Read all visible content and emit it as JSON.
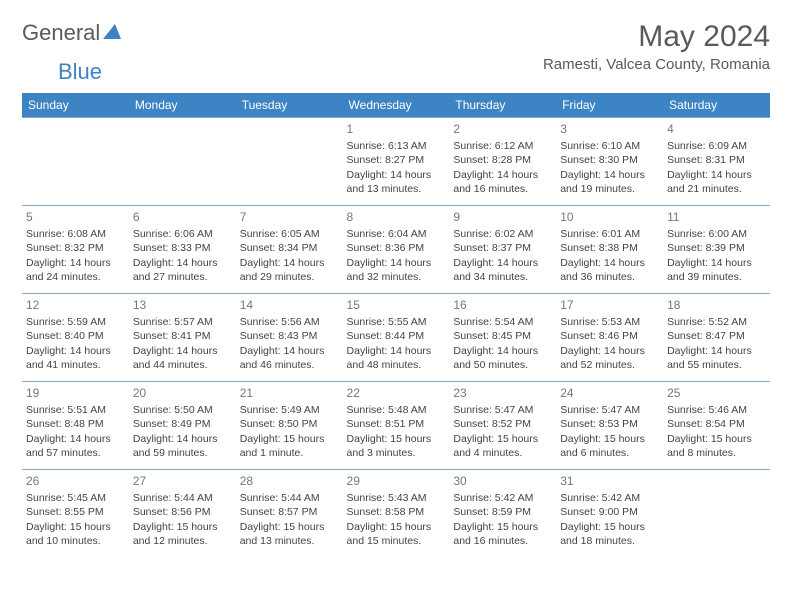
{
  "logo": {
    "text1": "General",
    "text2": "Blue"
  },
  "title": "May 2024",
  "location": "Ramesti, Valcea County, Romania",
  "colors": {
    "header_bg": "#3d84c5",
    "header_text": "#ffffff",
    "border": "#8aa8c0",
    "text": "#444444",
    "title_text": "#5a5a5a"
  },
  "weekdays": [
    "Sunday",
    "Monday",
    "Tuesday",
    "Wednesday",
    "Thursday",
    "Friday",
    "Saturday"
  ],
  "weeks": [
    [
      null,
      null,
      null,
      {
        "n": "1",
        "sr": "6:13 AM",
        "ss": "8:27 PM",
        "d1": "Daylight: 14 hours",
        "d2": "and 13 minutes."
      },
      {
        "n": "2",
        "sr": "6:12 AM",
        "ss": "8:28 PM",
        "d1": "Daylight: 14 hours",
        "d2": "and 16 minutes."
      },
      {
        "n": "3",
        "sr": "6:10 AM",
        "ss": "8:30 PM",
        "d1": "Daylight: 14 hours",
        "d2": "and 19 minutes."
      },
      {
        "n": "4",
        "sr": "6:09 AM",
        "ss": "8:31 PM",
        "d1": "Daylight: 14 hours",
        "d2": "and 21 minutes."
      }
    ],
    [
      {
        "n": "5",
        "sr": "6:08 AM",
        "ss": "8:32 PM",
        "d1": "Daylight: 14 hours",
        "d2": "and 24 minutes."
      },
      {
        "n": "6",
        "sr": "6:06 AM",
        "ss": "8:33 PM",
        "d1": "Daylight: 14 hours",
        "d2": "and 27 minutes."
      },
      {
        "n": "7",
        "sr": "6:05 AM",
        "ss": "8:34 PM",
        "d1": "Daylight: 14 hours",
        "d2": "and 29 minutes."
      },
      {
        "n": "8",
        "sr": "6:04 AM",
        "ss": "8:36 PM",
        "d1": "Daylight: 14 hours",
        "d2": "and 32 minutes."
      },
      {
        "n": "9",
        "sr": "6:02 AM",
        "ss": "8:37 PM",
        "d1": "Daylight: 14 hours",
        "d2": "and 34 minutes."
      },
      {
        "n": "10",
        "sr": "6:01 AM",
        "ss": "8:38 PM",
        "d1": "Daylight: 14 hours",
        "d2": "and 36 minutes."
      },
      {
        "n": "11",
        "sr": "6:00 AM",
        "ss": "8:39 PM",
        "d1": "Daylight: 14 hours",
        "d2": "and 39 minutes."
      }
    ],
    [
      {
        "n": "12",
        "sr": "5:59 AM",
        "ss": "8:40 PM",
        "d1": "Daylight: 14 hours",
        "d2": "and 41 minutes."
      },
      {
        "n": "13",
        "sr": "5:57 AM",
        "ss": "8:41 PM",
        "d1": "Daylight: 14 hours",
        "d2": "and 44 minutes."
      },
      {
        "n": "14",
        "sr": "5:56 AM",
        "ss": "8:43 PM",
        "d1": "Daylight: 14 hours",
        "d2": "and 46 minutes."
      },
      {
        "n": "15",
        "sr": "5:55 AM",
        "ss": "8:44 PM",
        "d1": "Daylight: 14 hours",
        "d2": "and 48 minutes."
      },
      {
        "n": "16",
        "sr": "5:54 AM",
        "ss": "8:45 PM",
        "d1": "Daylight: 14 hours",
        "d2": "and 50 minutes."
      },
      {
        "n": "17",
        "sr": "5:53 AM",
        "ss": "8:46 PM",
        "d1": "Daylight: 14 hours",
        "d2": "and 52 minutes."
      },
      {
        "n": "18",
        "sr": "5:52 AM",
        "ss": "8:47 PM",
        "d1": "Daylight: 14 hours",
        "d2": "and 55 minutes."
      }
    ],
    [
      {
        "n": "19",
        "sr": "5:51 AM",
        "ss": "8:48 PM",
        "d1": "Daylight: 14 hours",
        "d2": "and 57 minutes."
      },
      {
        "n": "20",
        "sr": "5:50 AM",
        "ss": "8:49 PM",
        "d1": "Daylight: 14 hours",
        "d2": "and 59 minutes."
      },
      {
        "n": "21",
        "sr": "5:49 AM",
        "ss": "8:50 PM",
        "d1": "Daylight: 15 hours",
        "d2": "and 1 minute."
      },
      {
        "n": "22",
        "sr": "5:48 AM",
        "ss": "8:51 PM",
        "d1": "Daylight: 15 hours",
        "d2": "and 3 minutes."
      },
      {
        "n": "23",
        "sr": "5:47 AM",
        "ss": "8:52 PM",
        "d1": "Daylight: 15 hours",
        "d2": "and 4 minutes."
      },
      {
        "n": "24",
        "sr": "5:47 AM",
        "ss": "8:53 PM",
        "d1": "Daylight: 15 hours",
        "d2": "and 6 minutes."
      },
      {
        "n": "25",
        "sr": "5:46 AM",
        "ss": "8:54 PM",
        "d1": "Daylight: 15 hours",
        "d2": "and 8 minutes."
      }
    ],
    [
      {
        "n": "26",
        "sr": "5:45 AM",
        "ss": "8:55 PM",
        "d1": "Daylight: 15 hours",
        "d2": "and 10 minutes."
      },
      {
        "n": "27",
        "sr": "5:44 AM",
        "ss": "8:56 PM",
        "d1": "Daylight: 15 hours",
        "d2": "and 12 minutes."
      },
      {
        "n": "28",
        "sr": "5:44 AM",
        "ss": "8:57 PM",
        "d1": "Daylight: 15 hours",
        "d2": "and 13 minutes."
      },
      {
        "n": "29",
        "sr": "5:43 AM",
        "ss": "8:58 PM",
        "d1": "Daylight: 15 hours",
        "d2": "and 15 minutes."
      },
      {
        "n": "30",
        "sr": "5:42 AM",
        "ss": "8:59 PM",
        "d1": "Daylight: 15 hours",
        "d2": "and 16 minutes."
      },
      {
        "n": "31",
        "sr": "5:42 AM",
        "ss": "9:00 PM",
        "d1": "Daylight: 15 hours",
        "d2": "and 18 minutes."
      },
      null
    ]
  ],
  "labels": {
    "sunrise": "Sunrise: ",
    "sunset": "Sunset: "
  }
}
